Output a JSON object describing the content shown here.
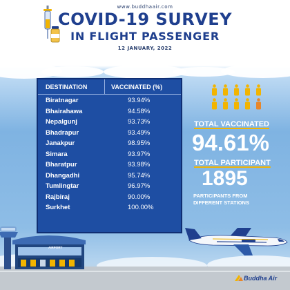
{
  "header": {
    "website": "www.buddhaair.com",
    "title_line1": "COVID-19 SURVEY",
    "title_line2": "IN FLIGHT PASSENGER",
    "date": "12 JANUARY, 2022"
  },
  "table": {
    "col_destination": "DESTINATION",
    "col_vaccinated": "VACCINATED (%)",
    "rows": [
      {
        "destination": "Biratnagar",
        "vaccinated": "93.94%"
      },
      {
        "destination": "Bhairahawa",
        "vaccinated": "94.58%"
      },
      {
        "destination": "Nepalgunj",
        "vaccinated": "93.73%"
      },
      {
        "destination": "Bhadrapur",
        "vaccinated": "93.49%"
      },
      {
        "destination": "Janakpur",
        "vaccinated": "98.95%"
      },
      {
        "destination": "Simara",
        "vaccinated": "93.97%"
      },
      {
        "destination": "Bharatpur",
        "vaccinated": "93.98%"
      },
      {
        "destination": "Dhangadhi",
        "vaccinated": "95.74%"
      },
      {
        "destination": "Tumlingtar",
        "vaccinated": "96.97%"
      },
      {
        "destination": "Rajbiraj",
        "vaccinated": "90.00%"
      },
      {
        "destination": "Surkhet",
        "vaccinated": "100.00%"
      }
    ]
  },
  "stats": {
    "total_vaccinated_label": "TOTAL VACCINATED",
    "total_vaccinated_value": "94.61%",
    "total_participant_label": "TOTAL PARTICIPANT",
    "total_participant_value": "1895",
    "participants_note_line1": "PARTICIPANTS FROM",
    "participants_note_line2": "DIFFERENT STATIONS"
  },
  "footer": {
    "brand": "Buddha Air",
    "airport_sign": "AIRPORT"
  },
  "colors": {
    "title_blue": "#1f3f8e",
    "table_blue": "#1e4ea3",
    "accent_yellow": "#f2b400",
    "person_yellow": "#f2b400",
    "person_orange": "#e8862a"
  },
  "chart_data": {
    "type": "table",
    "title": "COVID-19 SURVEY IN FLIGHT PASSENGER",
    "columns": [
      "DESTINATION",
      "VACCINATED (%)"
    ],
    "categories": [
      "Biratnagar",
      "Bhairahawa",
      "Nepalgunj",
      "Bhadrapur",
      "Janakpur",
      "Simara",
      "Bharatpur",
      "Dhangadhi",
      "Tumlingtar",
      "Rajbiraj",
      "Surkhet"
    ],
    "values": [
      93.94,
      94.58,
      93.73,
      93.49,
      98.95,
      93.97,
      93.98,
      95.74,
      96.97,
      90.0,
      100.0
    ],
    "total_vaccinated_percent": 94.61,
    "total_participants": 1895,
    "people_icons": {
      "total": 10,
      "vaccinated": 9
    }
  }
}
